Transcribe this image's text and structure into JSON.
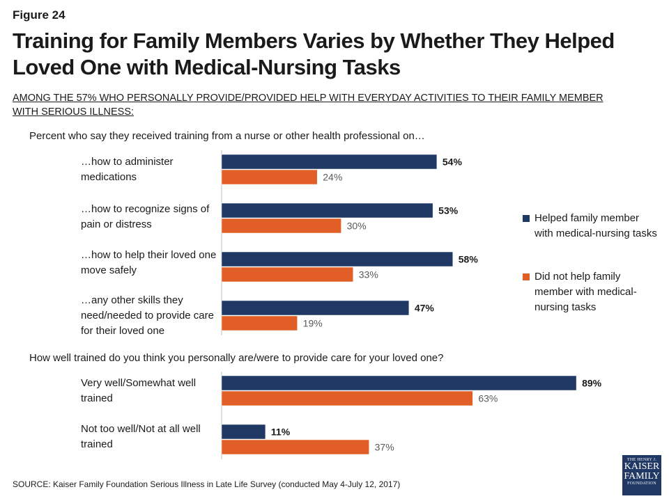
{
  "figure_label": "Figure 24",
  "title": "Training for Family Members Varies by Whether They Helped Loved One with Medical-Nursing Tasks",
  "subtitle": "AMONG THE 57% WHO PERSONALLY PROVIDE/PROVIDED HELP WITH EVERYDAY ACTIVITIES TO THEIR FAMILY MEMBER WITH SERIOUS ILLNESS:",
  "question1": "Percent who say they received training from a nurse or other health professional on…",
  "question2": "How well trained do you think you personally are/were to provide care for your loved one?",
  "source": "SOURCE: Kaiser Family Foundation Serious Illness in Late Life Survey (conducted May 4-July 12, 2017)",
  "logo": {
    "line1": "THE HENRY J.",
    "line2": "KAISER",
    "line3": "FAMILY",
    "line4": "FOUNDATION"
  },
  "colors": {
    "helped": "#1f3864",
    "not_helped": "#e15e26"
  },
  "legend": [
    {
      "label": "Helped family member with medical-nursing tasks",
      "color": "#1f3864"
    },
    {
      "label": "Did not help family member with medical-nursing tasks",
      "color": "#e15e26"
    }
  ],
  "chart_data": {
    "type": "bar",
    "orientation": "horizontal",
    "xlim": [
      0,
      100
    ],
    "value_suffix": "%",
    "categories": [
      "…how to administer medications",
      "…how to recognize signs of pain or distress",
      "…how to help their loved one move safely",
      "…any other skills they need/needed to provide care for their loved one",
      "Very well/Somewhat well trained",
      "Not too well/Not at all well trained"
    ],
    "series": [
      {
        "name": "Helped family member with medical-nursing tasks",
        "values": [
          54,
          53,
          58,
          47,
          89,
          11
        ]
      },
      {
        "name": "Did not help family member with medical-nursing tasks",
        "values": [
          24,
          30,
          33,
          19,
          63,
          37
        ]
      }
    ]
  }
}
